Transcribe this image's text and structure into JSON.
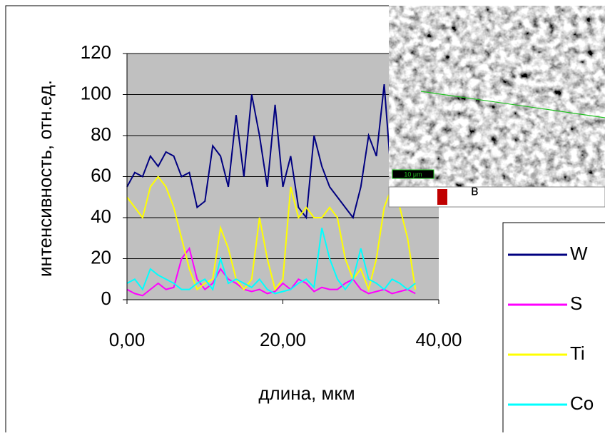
{
  "chart_data": {
    "type": "line",
    "y_label": "интенсивность, отн.ед.",
    "x_label": "длина, мкм",
    "inset_label": "в",
    "inset_scale": "10 μm",
    "x": [
      0,
      1,
      2,
      3,
      4,
      5,
      6,
      7,
      8,
      9,
      10,
      11,
      12,
      13,
      14,
      15,
      16,
      17,
      18,
      19,
      20,
      21,
      22,
      23,
      24,
      25,
      26,
      27,
      28,
      29,
      30,
      31,
      32,
      33,
      34,
      35,
      36,
      37
    ],
    "series": [
      {
        "name": "W",
        "color": "#000080",
        "values": [
          55,
          62,
          60,
          70,
          65,
          72,
          70,
          60,
          62,
          45,
          48,
          75,
          70,
          55,
          90,
          60,
          100,
          80,
          55,
          95,
          55,
          70,
          45,
          40,
          80,
          65,
          55,
          50,
          45,
          40,
          55,
          80,
          70,
          105,
          55,
          50,
          55,
          55
        ]
      },
      {
        "name": "S",
        "color": "#ff00ff",
        "values": [
          5,
          3,
          2,
          5,
          8,
          5,
          6,
          20,
          25,
          10,
          5,
          8,
          15,
          10,
          8,
          5,
          4,
          5,
          3,
          4,
          8,
          5,
          10,
          8,
          4,
          6,
          5,
          5,
          8,
          10,
          5,
          3,
          4,
          5,
          3,
          4,
          5,
          3
        ]
      },
      {
        "name": "Ti",
        "color": "#ffff00",
        "values": [
          50,
          45,
          40,
          55,
          60,
          55,
          45,
          30,
          15,
          5,
          8,
          10,
          35,
          25,
          10,
          5,
          10,
          40,
          20,
          5,
          10,
          55,
          40,
          45,
          40,
          40,
          45,
          40,
          20,
          10,
          15,
          5,
          20,
          45,
          55,
          45,
          30,
          5
        ]
      },
      {
        "name": "Co",
        "color": "#00ffff",
        "values": [
          8,
          10,
          5,
          15,
          12,
          10,
          8,
          5,
          5,
          8,
          10,
          5,
          20,
          8,
          10,
          8,
          6,
          10,
          5,
          3,
          4,
          5,
          8,
          10,
          6,
          35,
          20,
          10,
          5,
          10,
          25,
          10,
          8,
          5,
          10,
          8,
          5,
          8
        ]
      }
    ],
    "xlim": [
      0,
      40
    ],
    "xticks": [
      {
        "value": 0,
        "label": "0,00"
      },
      {
        "value": 20,
        "label": "20,00"
      },
      {
        "value": 40,
        "label": "40,00"
      }
    ],
    "ylim": [
      0,
      120
    ],
    "yticks": [
      0,
      20,
      40,
      60,
      80,
      100,
      120
    ],
    "grid": true,
    "legend": "right"
  }
}
